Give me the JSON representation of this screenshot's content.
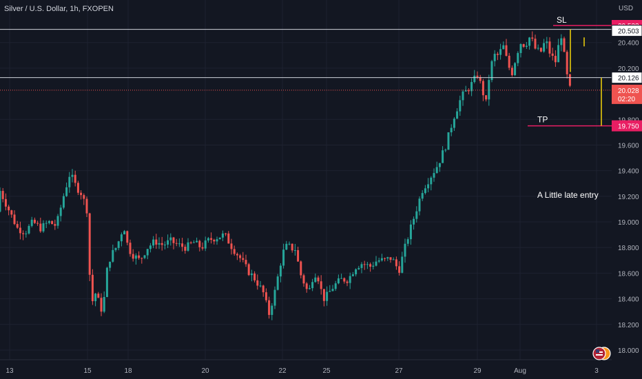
{
  "title": "Silver / U.S. Dollar, 1h, FXOPEN",
  "currency": "USD",
  "colors": {
    "background": "#131722",
    "grid": "#1e2230",
    "up": "#26a69a",
    "down": "#ef5350",
    "text": "#b2b5be",
    "white_line": "#d1d4dc",
    "magenta": "#e91e63",
    "yellow": "#f5d60a"
  },
  "annotations": {
    "sl_label": "SL",
    "tp_label": "TP",
    "note": "A Little late entry"
  },
  "price_tags": {
    "sl": "20.533",
    "upper_line": "20.503",
    "entry_line": "20.126",
    "current": "20.028",
    "countdown": "02:20",
    "tp": "19.750"
  },
  "chart_data": {
    "type": "candlestick",
    "title": "Silver / U.S. Dollar, 1h, FXOPEN",
    "y_ticks": [
      "20.400",
      "20.200",
      "19.800",
      "19.600",
      "19.400",
      "19.200",
      "19.000",
      "18.800",
      "18.600",
      "18.400",
      "18.200",
      "18.000"
    ],
    "x_ticks": [
      "13",
      "15",
      "18",
      "20",
      "22",
      "25",
      "27",
      "29",
      "Aug",
      "3"
    ],
    "ylim": [
      17.95,
      20.65
    ],
    "levels": {
      "stop_loss": 20.533,
      "upper_line": 20.503,
      "entry": 20.126,
      "current": 20.028,
      "take_profit": 19.75
    },
    "path": [
      [
        13.0,
        19.08
      ],
      [
        13.2,
        18.95
      ],
      [
        13.4,
        18.92
      ],
      [
        13.6,
        19.0
      ],
      [
        13.8,
        18.95
      ],
      [
        14.0,
        19.0
      ],
      [
        14.2,
        18.97
      ],
      [
        14.4,
        19.22
      ],
      [
        14.55,
        19.38
      ],
      [
        14.7,
        19.28
      ],
      [
        14.85,
        19.22
      ],
      [
        15.0,
        19.08
      ],
      [
        15.1,
        18.8
      ],
      [
        15.25,
        18.3
      ],
      [
        15.4,
        18.4
      ],
      [
        15.55,
        18.45
      ],
      [
        15.7,
        18.42
      ],
      [
        15.9,
        18.35
      ],
      [
        16.1,
        18.3
      ],
      [
        16.25,
        18.42
      ],
      [
        16.4,
        18.6
      ],
      [
        16.6,
        18.7
      ],
      [
        16.8,
        18.75
      ],
      [
        17.0,
        18.78
      ],
      [
        17.2,
        18.82
      ],
      [
        17.4,
        18.88
      ],
      [
        17.6,
        18.95
      ],
      [
        17.75,
        18.95
      ],
      [
        17.9,
        18.85
      ],
      [
        18.1,
        18.75
      ],
      [
        18.3,
        18.7
      ],
      [
        18.5,
        18.8
      ],
      [
        18.7,
        18.85
      ],
      [
        18.9,
        18.82
      ],
      [
        19.1,
        18.85
      ],
      [
        19.3,
        18.82
      ],
      [
        19.5,
        18.8
      ],
      [
        19.7,
        18.84
      ],
      [
        19.9,
        18.8
      ],
      [
        20.1,
        18.86
      ],
      [
        20.3,
        18.88
      ],
      [
        20.5,
        18.9
      ],
      [
        20.7,
        18.8
      ],
      [
        20.9,
        18.72
      ],
      [
        21.1,
        18.62
      ],
      [
        21.3,
        18.55
      ],
      [
        21.5,
        18.45
      ],
      [
        21.65,
        18.28
      ],
      [
        21.8,
        18.45
      ],
      [
        22.0,
        18.75
      ],
      [
        22.2,
        18.8
      ],
      [
        22.4,
        18.82
      ],
      [
        22.6,
        18.78
      ],
      [
        22.8,
        18.82
      ],
      [
        23.0,
        18.72
      ],
      [
        23.2,
        18.6
      ],
      [
        23.4,
        18.55
      ],
      [
        23.6,
        18.48
      ],
      [
        23.8,
        18.45
      ],
      [
        24.0,
        18.55
      ],
      [
        24.2,
        18.6
      ],
      [
        24.4,
        18.58
      ],
      [
        24.6,
        18.48
      ],
      [
        24.8,
        18.4
      ],
      [
        25.0,
        18.42
      ],
      [
        25.2,
        18.5
      ],
      [
        25.4,
        18.55
      ],
      [
        25.6,
        18.55
      ],
      [
        25.8,
        18.65
      ],
      [
        26.0,
        18.68
      ],
      [
        26.2,
        18.65
      ],
      [
        26.4,
        18.7
      ],
      [
        26.6,
        18.7
      ],
      [
        26.8,
        18.72
      ],
      [
        27.0,
        18.62
      ],
      [
        27.2,
        18.85
      ],
      [
        27.4,
        19.05
      ],
      [
        27.6,
        19.25
      ],
      [
        27.8,
        19.35
      ],
      [
        28.0,
        19.45
      ],
      [
        28.2,
        19.6
      ],
      [
        28.4,
        19.82
      ],
      [
        28.6,
        19.98
      ],
      [
        28.8,
        20.05
      ],
      [
        29.0,
        20.15
      ],
      [
        29.2,
        20.05
      ],
      [
        29.4,
        19.92
      ],
      [
        29.6,
        20.2
      ],
      [
        29.8,
        20.3
      ],
      [
        30.0,
        20.3
      ],
      [
        30.2,
        20.38
      ],
      [
        30.4,
        20.25
      ],
      [
        30.6,
        20.15
      ],
      [
        30.8,
        20.28
      ],
      [
        31.0,
        20.4
      ],
      [
        31.2,
        20.38
      ],
      [
        31.4,
        20.45
      ],
      [
        31.6,
        20.35
      ],
      [
        31.8,
        20.32
      ],
      [
        32.0,
        20.42
      ],
      [
        32.2,
        20.3
      ],
      [
        32.4,
        20.25
      ],
      [
        32.6,
        20.48
      ],
      [
        32.8,
        20.2
      ],
      [
        32.9,
        20.05
      ],
      [
        33.0,
        20.028
      ]
    ]
  }
}
